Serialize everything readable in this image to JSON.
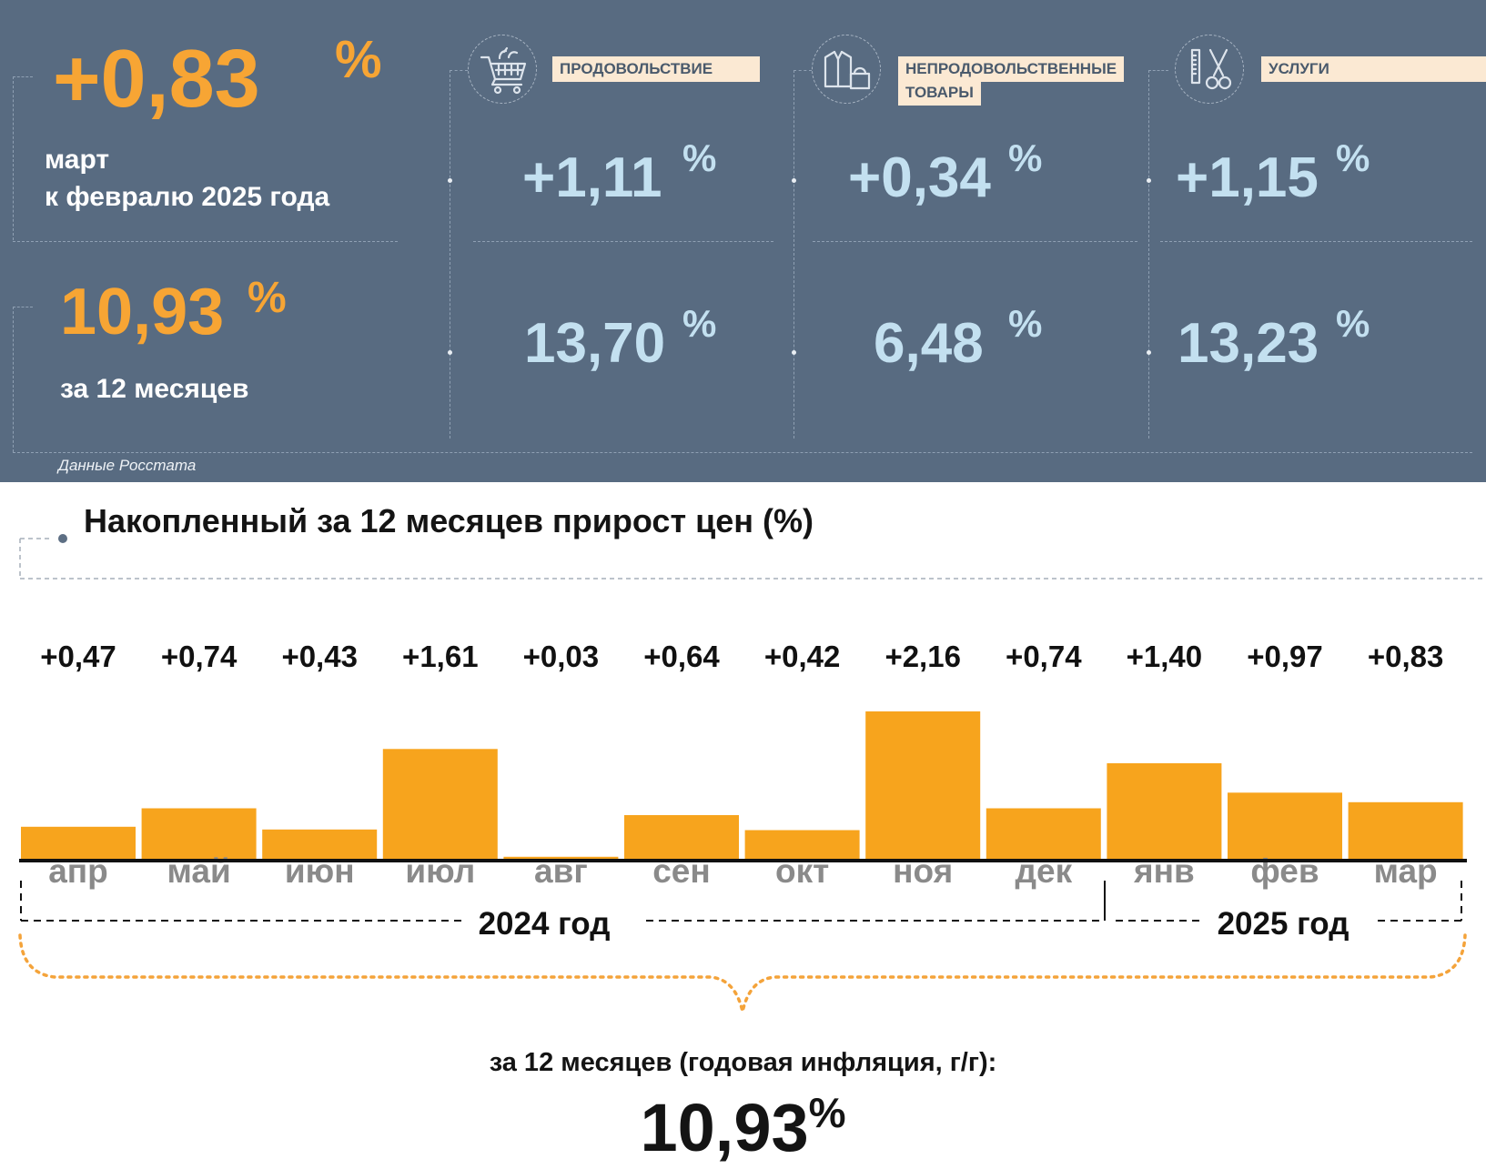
{
  "header": {
    "monthly_value": "+0,83",
    "percent_sign": "%",
    "monthly_caption_line1": "март",
    "monthly_caption_line2": "к февралю 2025 года",
    "annual_value": "10,93",
    "annual_caption": "за 12 месяцев",
    "source": "Данные Росстата"
  },
  "categories": [
    {
      "label": "ПРОДОВОЛЬСТВИЕ",
      "icon": "shopping-cart-icon",
      "monthly": "+1,11",
      "annual": "13,70"
    },
    {
      "label_line1": "НЕПРОДОВОЛЬСТВЕННЫЕ",
      "label_line2": "ТОВАРЫ",
      "icon": "clothes-handbag-icon",
      "monthly": "+0,34",
      "annual": "6,48"
    },
    {
      "label": "УСЛУГИ",
      "icon": "scissors-comb-icon",
      "monthly": "+1,15",
      "annual": "13,23"
    }
  ],
  "chart_data": {
    "type": "bar",
    "title": "Накопленный за 12 месяцев прирост цен (%)",
    "categories": [
      "апр",
      "май",
      "июн",
      "июл",
      "авг",
      "сен",
      "окт",
      "ноя",
      "дек",
      "янв",
      "фев",
      "мар"
    ],
    "values": [
      0.47,
      0.74,
      0.43,
      1.61,
      0.03,
      0.64,
      0.42,
      2.16,
      0.74,
      1.4,
      0.97,
      0.83
    ],
    "value_labels": [
      "+0,47",
      "+0,74",
      "+0,43",
      "+1,61",
      "+0,03",
      "+0,64",
      "+0,42",
      "+2,16",
      "+0,74",
      "+1,40",
      "+0,97",
      "+0,83"
    ],
    "year_groups": [
      {
        "label": "2024 год",
        "months": 9
      },
      {
        "label": "2025 год",
        "months": 3
      }
    ],
    "ylim": [
      0,
      2.16
    ],
    "bar_color": "#f7a41d",
    "grid": false,
    "summary_label": "за 12 месяцев (годовая инфляция, г/г):",
    "summary_value": "10,93",
    "summary_percent": "%"
  },
  "colors": {
    "panel_background": "#586b81",
    "accent_orange": "#f7a534",
    "light_blue_values": "#c3e0f0",
    "label_background": "#fbe9d3"
  }
}
